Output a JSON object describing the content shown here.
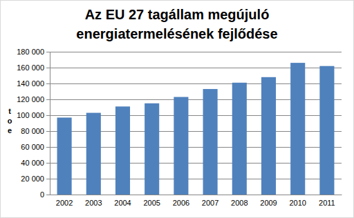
{
  "chart_data": {
    "type": "bar",
    "title": [
      "Az EU 27 tagállam megújuló",
      "energiatermelésének fejlődése"
    ],
    "y_label": "toe",
    "categories": [
      "2002",
      "2003",
      "2004",
      "2005",
      "2006",
      "2007",
      "2008",
      "2009",
      "2010",
      "2011"
    ],
    "values": [
      97000,
      103000,
      111000,
      115000,
      123000,
      133000,
      141000,
      148000,
      166000,
      162000
    ],
    "color": "#4f81bd",
    "ylim": [
      0,
      180000
    ],
    "yticks": [
      0,
      {
        "value": 20000,
        "label": "20 000"
      },
      {
        "value": 40000,
        "label": "40 000"
      },
      {
        "value": 60000,
        "label": "60 000"
      },
      {
        "value": 80000,
        "label": "80 000"
      },
      {
        "value": 100000,
        "label": "100 000"
      },
      {
        "value": 120000,
        "label": "120 000"
      },
      {
        "value": 140000,
        "label": "140 000"
      },
      {
        "value": 160000,
        "label": "160 000"
      },
      {
        "value": 180000,
        "label": "180 000"
      }
    ],
    "grid": true
  }
}
